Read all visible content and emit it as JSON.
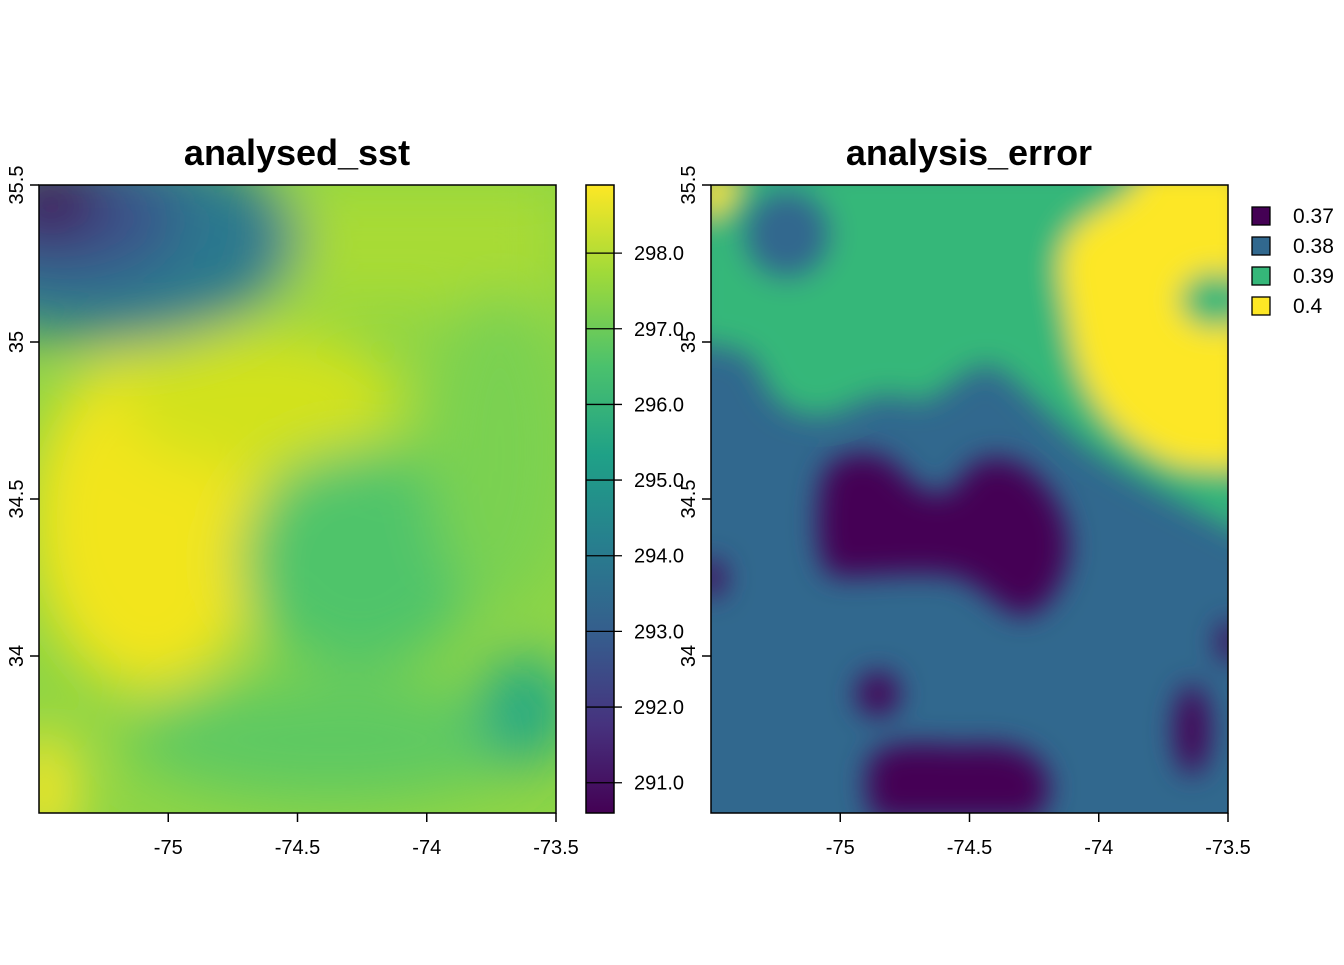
{
  "chart_data": [
    {
      "type": "heatmap",
      "title": "analysed_sst",
      "xlabel": "",
      "ylabel": "",
      "xlim": [
        -75.5,
        -73.5
      ],
      "ylim": [
        33.5,
        35.5
      ],
      "x_ticks": [
        -75,
        -74.5,
        -74,
        -73.5
      ],
      "x_tick_labels": [
        "-75",
        "-74.5",
        "-74",
        "-73.5"
      ],
      "y_ticks": [
        34,
        34.5,
        35,
        35.5
      ],
      "y_tick_labels": [
        "34",
        "34.5",
        "35",
        "35.5"
      ],
      "colorbar": {
        "palette": "viridis",
        "range": [
          290.6,
          298.9
        ],
        "ticks": [
          291.0,
          292.0,
          293.0,
          294.0,
          295.0,
          296.0,
          297.0,
          298.0
        ],
        "tick_labels": [
          "291.0",
          "292.0",
          "293.0",
          "294.0",
          "295.0",
          "296.0",
          "297.0",
          "298.0"
        ]
      },
      "colors": [
        "#440154",
        "#46327e",
        "#365c8d",
        "#277f8e",
        "#1fa187",
        "#4ac16d",
        "#a0da39",
        "#fde725"
      ]
    },
    {
      "type": "heatmap",
      "title": "analysis_error",
      "xlabel": "",
      "ylabel": "",
      "xlim": [
        -75.5,
        -73.5
      ],
      "ylim": [
        33.5,
        35.5
      ],
      "x_ticks": [
        -75,
        -74.5,
        -74,
        -73.5
      ],
      "x_tick_labels": [
        "-75",
        "-74.5",
        "-74",
        "-73.5"
      ],
      "y_ticks": [
        34,
        34.5,
        35,
        35.5
      ],
      "y_tick_labels": [
        "34",
        "34.5",
        "35",
        "35.5"
      ],
      "legend": {
        "position": "right",
        "items": [
          {
            "label": "0.37",
            "color": "#440154"
          },
          {
            "label": "0.38",
            "color": "#31688e"
          },
          {
            "label": "0.39",
            "color": "#35b779"
          },
          {
            "label": "0.4",
            "color": "#fde725"
          }
        ]
      }
    }
  ]
}
